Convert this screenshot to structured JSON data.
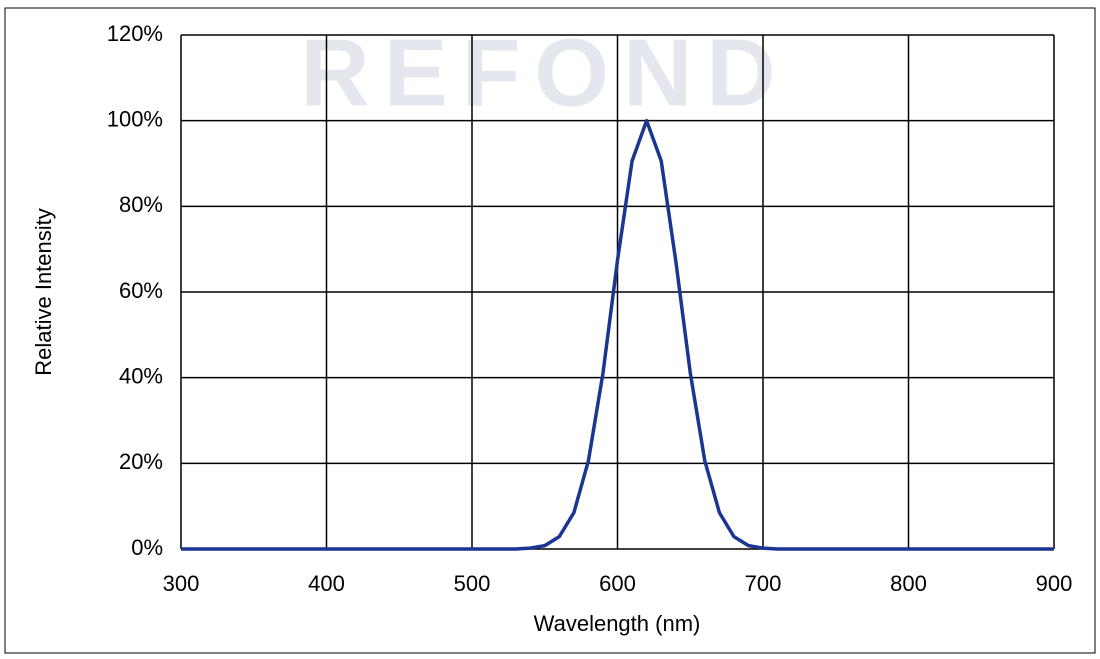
{
  "chart_data": {
    "type": "line",
    "watermark": "REFOND",
    "x_label": "Wavelength (nm)",
    "y_label": "Relative Intensity",
    "x": [
      300,
      400,
      500,
      530,
      540,
      550,
      560,
      570,
      580,
      590,
      600,
      610,
      620,
      630,
      640,
      650,
      660,
      670,
      680,
      690,
      700,
      710,
      800,
      900
    ],
    "series": [
      {
        "name": "Relative Intensity",
        "color": "#1a3690",
        "values": [
          0,
          0,
          0,
          0,
          0.2,
          0.8,
          2.9,
          8.5,
          20.6,
          41.1,
          67.4,
          90.6,
          100,
          90.6,
          67.4,
          41.1,
          20.6,
          8.5,
          2.9,
          0.8,
          0.2,
          0,
          0,
          0
        ]
      }
    ],
    "xlim": [
      300,
      900
    ],
    "xticks": [
      300,
      400,
      500,
      600,
      700,
      800,
      900
    ],
    "ylim": [
      0,
      120
    ],
    "yticks": [
      {
        "value": 0,
        "label": "0%"
      },
      {
        "value": 20,
        "label": "20%"
      },
      {
        "value": 40,
        "label": "40%"
      },
      {
        "value": 60,
        "label": "60%"
      },
      {
        "value": 80,
        "label": "80%"
      },
      {
        "value": 100,
        "label": "100%"
      },
      {
        "value": 120,
        "label": "120%"
      }
    ],
    "grid": true
  }
}
